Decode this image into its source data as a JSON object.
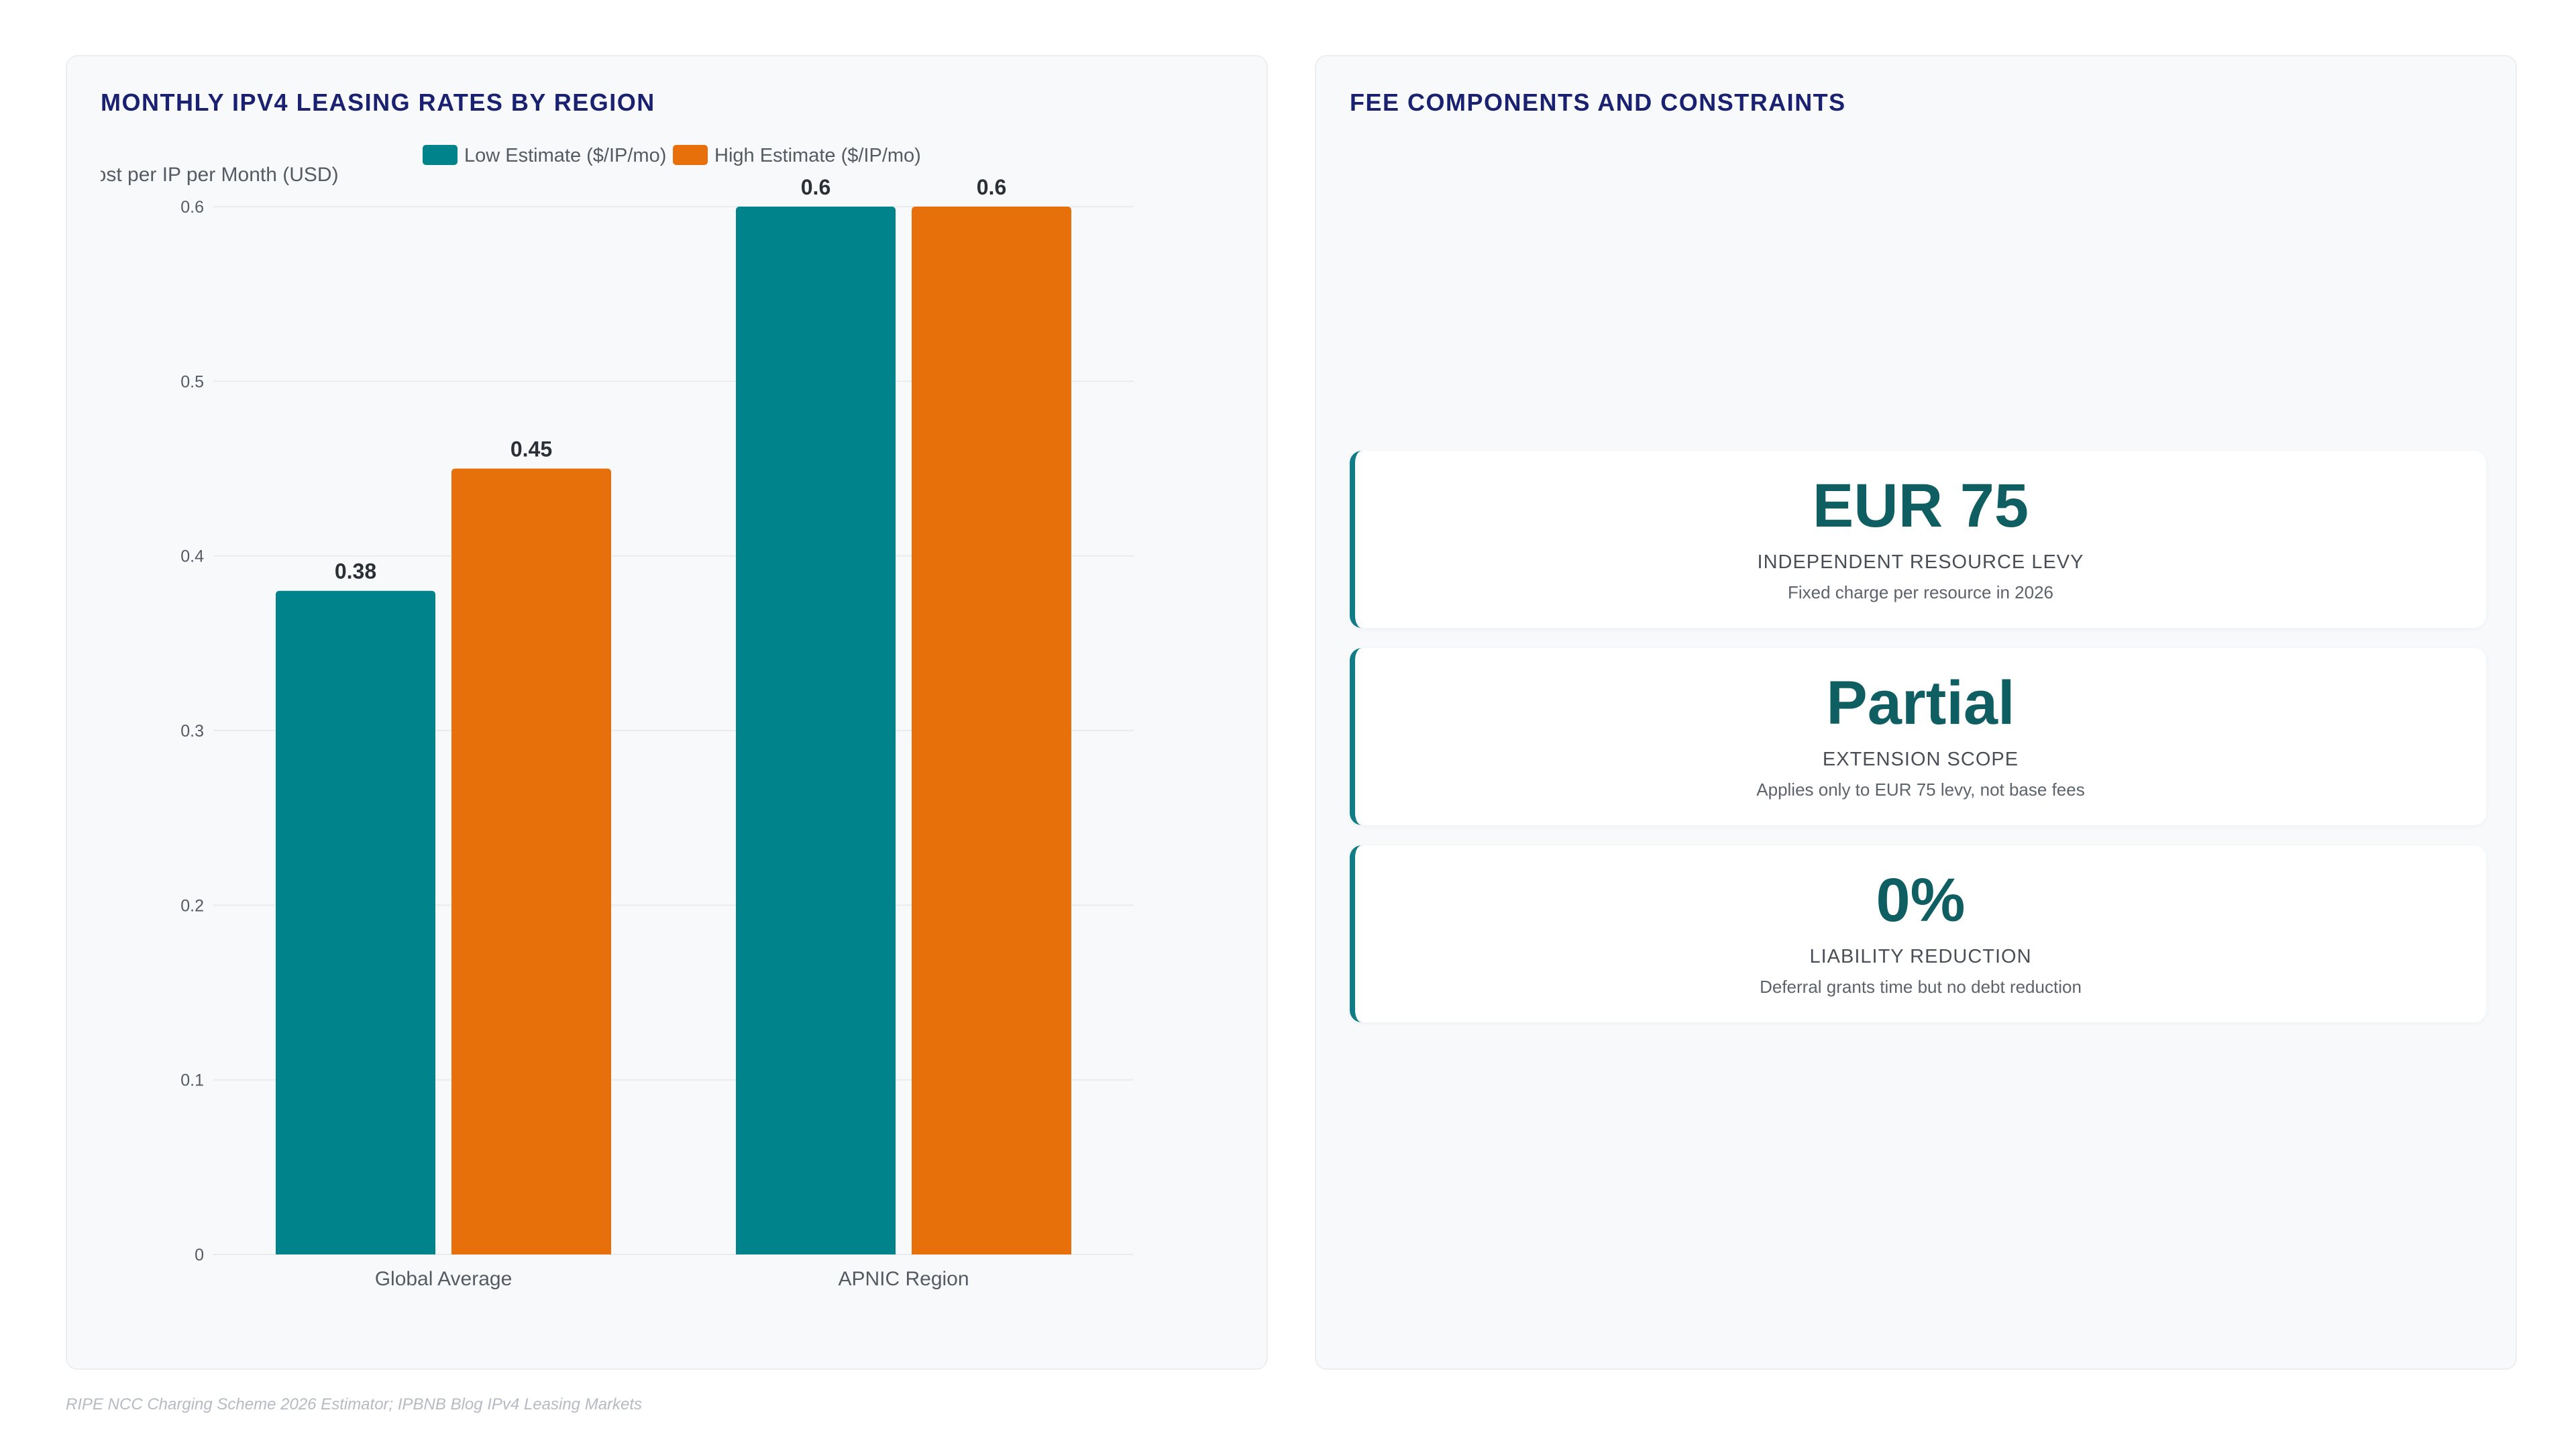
{
  "left_panel": {
    "title": "MONTHLY IPV4 LEASING RATES BY REGION"
  },
  "right_panel": {
    "title": "FEE COMPONENTS AND CONSTRAINTS",
    "cards": [
      {
        "value": "EUR 75",
        "label": "INDEPENDENT RESOURCE LEVY",
        "description": "Fixed charge per resource in 2026"
      },
      {
        "value": "Partial",
        "label": "EXTENSION SCOPE",
        "description": "Applies only to EUR 75 levy, not base fees"
      },
      {
        "value": "0%",
        "label": "LIABILITY REDUCTION",
        "description": "Deferral grants time but no debt reduction"
      }
    ]
  },
  "source": "RIPE NCC Charging Scheme 2026 Estimator; IPBNB Blog IPv4 Leasing Markets",
  "colors": {
    "low": "#00838a",
    "high": "#e8700a",
    "title": "#1a2170",
    "metric": "#0f5e62"
  },
  "chart_data": {
    "type": "bar",
    "categories": [
      "Global Average",
      "APNIC Region"
    ],
    "series": [
      {
        "name": "Low Estimate ($/IP/mo)",
        "values": [
          0.38,
          0.6
        ]
      },
      {
        "name": "High Estimate ($/IP/mo)",
        "values": [
          0.45,
          0.6
        ]
      }
    ],
    "ylabel": "Cost per IP per Month (USD)",
    "ylim": [
      0,
      0.6
    ],
    "yticks": [
      "0",
      "0.1",
      "0.2",
      "0.3",
      "0.4",
      "0.5",
      "0.6"
    ],
    "data_labels": [
      [
        "0.38",
        "0.6"
      ],
      [
        "0.45",
        "0.6"
      ]
    ],
    "legend": "top",
    "grid": true
  }
}
